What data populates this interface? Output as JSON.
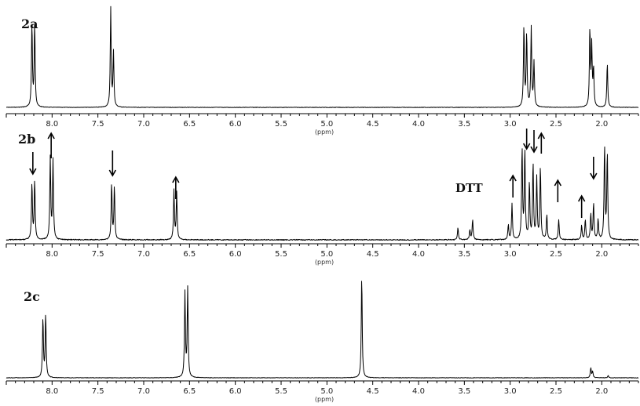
{
  "chart_data": [
    {
      "type": "line",
      "panel_label": "2a",
      "xlabel": "(ppm)",
      "xlim": [
        8.5,
        1.6
      ],
      "x_reversed": true,
      "x_ticks": [
        "8.0",
        "7.5",
        "7.0",
        "6.5",
        "6.0",
        "5.5",
        "5.0",
        "4.5",
        "4.0",
        "3.5",
        "3.0",
        "2.5",
        "2.0"
      ],
      "series": [
        {
          "peaks": [
            {
              "ppm": 8.22,
              "height": 0.84
            },
            {
              "ppm": 8.19,
              "height": 0.84
            },
            {
              "ppm": 7.36,
              "height": 1.0
            },
            {
              "ppm": 7.33,
              "height": 0.55
            },
            {
              "ppm": 2.85,
              "height": 0.82
            },
            {
              "ppm": 2.82,
              "height": 0.74
            },
            {
              "ppm": 2.77,
              "height": 0.8
            },
            {
              "ppm": 2.74,
              "height": 0.45
            },
            {
              "ppm": 2.13,
              "height": 0.78
            },
            {
              "ppm": 2.11,
              "height": 0.6
            },
            {
              "ppm": 2.09,
              "height": 0.38
            },
            {
              "ppm": 1.94,
              "height": 0.45
            }
          ]
        }
      ]
    },
    {
      "type": "line",
      "panel_label": "2b",
      "xlabel": "(ppm)",
      "xlim": [
        8.5,
        1.6
      ],
      "x_reversed": true,
      "x_ticks": [
        "8.0",
        "7.5",
        "7.0",
        "6.5",
        "6.0",
        "5.5",
        "5.0",
        "4.5",
        "4.0",
        "3.5",
        "3.0",
        "2.5",
        "2.0"
      ],
      "annotations": [
        {
          "text": "DTT",
          "ppm": 3.5
        }
      ],
      "arrows": [
        {
          "ppm": 8.21,
          "direction": "down"
        },
        {
          "ppm": 8.01,
          "direction": "up"
        },
        {
          "ppm": 7.34,
          "direction": "down"
        },
        {
          "ppm": 6.65,
          "direction": "up"
        },
        {
          "ppm": 2.97,
          "direction": "up"
        },
        {
          "ppm": 2.82,
          "direction": "down"
        },
        {
          "ppm": 2.74,
          "direction": "down"
        },
        {
          "ppm": 2.66,
          "direction": "up"
        },
        {
          "ppm": 2.48,
          "direction": "up"
        },
        {
          "ppm": 2.22,
          "direction": "up"
        },
        {
          "ppm": 2.09,
          "direction": "down"
        }
      ],
      "series": [
        {
          "peaks": [
            {
              "ppm": 8.22,
              "height": 0.55
            },
            {
              "ppm": 8.19,
              "height": 0.58
            },
            {
              "ppm": 8.02,
              "height": 0.8
            },
            {
              "ppm": 7.99,
              "height": 0.78
            },
            {
              "ppm": 7.35,
              "height": 0.55
            },
            {
              "ppm": 7.32,
              "height": 0.52
            },
            {
              "ppm": 6.67,
              "height": 0.48
            },
            {
              "ppm": 6.64,
              "height": 0.46
            },
            {
              "ppm": 3.57,
              "height": 0.12
            },
            {
              "ppm": 3.44,
              "height": 0.1
            },
            {
              "ppm": 3.41,
              "height": 0.2
            },
            {
              "ppm": 3.02,
              "height": 0.15
            },
            {
              "ppm": 2.98,
              "height": 0.35
            },
            {
              "ppm": 2.87,
              "height": 0.9
            },
            {
              "ppm": 2.84,
              "height": 0.88
            },
            {
              "ppm": 2.79,
              "height": 0.55
            },
            {
              "ppm": 2.75,
              "height": 0.75
            },
            {
              "ppm": 2.71,
              "height": 0.6
            },
            {
              "ppm": 2.67,
              "height": 0.72
            },
            {
              "ppm": 2.6,
              "height": 0.25
            },
            {
              "ppm": 2.47,
              "height": 0.2
            },
            {
              "ppm": 2.22,
              "height": 0.14
            },
            {
              "ppm": 2.18,
              "height": 0.2
            },
            {
              "ppm": 2.12,
              "height": 0.25
            },
            {
              "ppm": 2.09,
              "height": 0.36
            },
            {
              "ppm": 2.04,
              "height": 0.2
            },
            {
              "ppm": 1.97,
              "height": 0.92
            },
            {
              "ppm": 1.94,
              "height": 0.85
            }
          ]
        }
      ]
    },
    {
      "type": "line",
      "panel_label": "2c",
      "xlabel": "(ppm)",
      "xlim": [
        8.5,
        1.6
      ],
      "x_reversed": true,
      "x_ticks": [
        "8.0",
        "7.5",
        "7.0",
        "6.5",
        "6.0",
        "5.5",
        "5.0",
        "4.5",
        "4.0",
        "3.5",
        "3.0",
        "2.5",
        "2.0"
      ],
      "series": [
        {
          "peaks": [
            {
              "ppm": 8.1,
              "height": 0.58
            },
            {
              "ppm": 8.07,
              "height": 0.62
            },
            {
              "ppm": 6.55,
              "height": 0.83
            },
            {
              "ppm": 6.52,
              "height": 0.87
            },
            {
              "ppm": 4.62,
              "height": 1.0
            },
            {
              "ppm": 2.12,
              "height": 0.1
            },
            {
              "ppm": 2.1,
              "height": 0.06
            },
            {
              "ppm": 1.93,
              "height": 0.02
            }
          ]
        }
      ]
    }
  ]
}
